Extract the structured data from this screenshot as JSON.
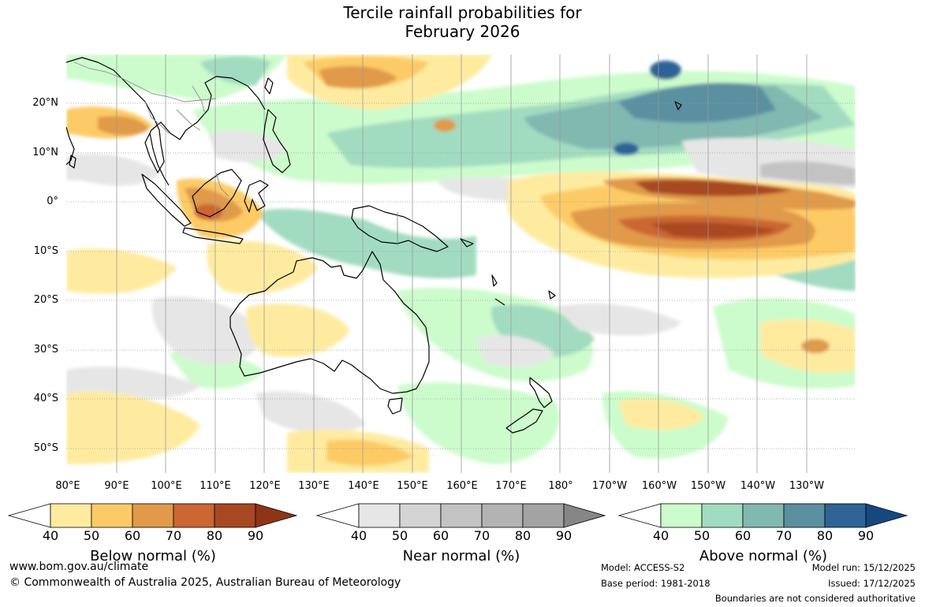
{
  "title": {
    "line1": "Tercile rainfall probabilities for",
    "line2": "February 2026"
  },
  "latitude_labels": [
    "20°N",
    "10°N",
    "0°",
    "10°S",
    "20°S",
    "30°S",
    "40°S",
    "50°S"
  ],
  "longitude_labels": [
    "80°E",
    "90°E",
    "100°E",
    "110°E",
    "120°E",
    "130°E",
    "140°E",
    "150°E",
    "160°E",
    "170°E",
    "180°",
    "170°W",
    "160°W",
    "150°W",
    "140°W",
    "130°W"
  ],
  "colors": {
    "below": [
      "#ffffff",
      "#ffeba0",
      "#fdcb66",
      "#e09a4a",
      "#cc6633",
      "#a84822",
      "#8e3518"
    ],
    "near": [
      "#ffffff",
      "#e6e6e6",
      "#d4d4d4",
      "#c3c3c3",
      "#b3b3b3",
      "#a3a3a3",
      "#868686"
    ],
    "above": [
      "#ffffff",
      "#ccfccc",
      "#a2dcc0",
      "#81b8b0",
      "#5a90a0",
      "#2e6496",
      "#164880"
    ],
    "land_outline": "#000000",
    "border": "#8c8c8c",
    "grid": "#9a9a9a"
  },
  "legends": {
    "ticks": [
      "40",
      "50",
      "60",
      "70",
      "80",
      "90"
    ],
    "below_title": "Below normal (%)",
    "near_title": "Near normal (%)",
    "above_title": "Above normal (%)"
  },
  "footer": {
    "website": "www.bom.gov.au/climate",
    "copyright": "© Commonwealth of Australia 2025, Australian Bureau of Meteorology",
    "model": "Model: ACCESS-S2",
    "base_period": "Base period: 1981-2018",
    "model_run": "Model run: 15/12/2025",
    "issued": "Issued: 17/12/2025",
    "disclaimer": "Boundaries are not considered authoritative"
  }
}
